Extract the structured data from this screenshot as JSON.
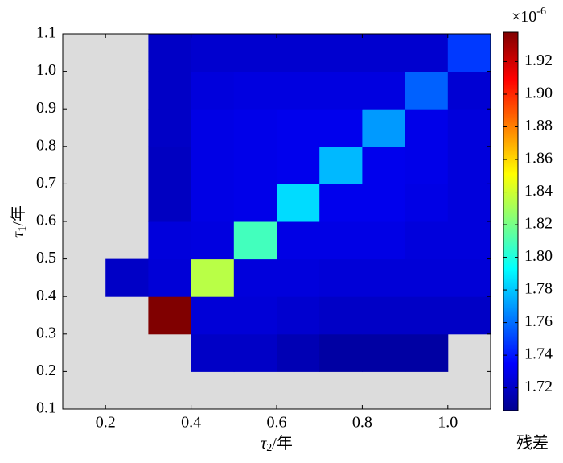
{
  "chart_data": {
    "type": "heatmap",
    "xlabel": {
      "symbol": "τ",
      "subscript": "2",
      "unit": "/年"
    },
    "ylabel": {
      "symbol": "τ",
      "subscript": "1",
      "unit": "/年"
    },
    "colorbar_label": "残差",
    "colorbar_multiplier": "×10",
    "colorbar_exponent": "-6",
    "colormap": "jet",
    "missing_color": "#dcdcdc",
    "xbins": [
      0.1,
      0.2,
      0.3,
      0.4,
      0.5,
      0.6,
      0.7,
      0.8,
      0.9,
      1.0,
      1.1
    ],
    "ybins": [
      0.1,
      0.2,
      0.3,
      0.4,
      0.5,
      0.6,
      0.7,
      0.8,
      0.9,
      1.0,
      1.1
    ],
    "z": [
      [
        null,
        null,
        null,
        null,
        null,
        null,
        null,
        null,
        null,
        null
      ],
      [
        null,
        null,
        null,
        1.722,
        1.722,
        1.718,
        1.714,
        1.714,
        1.714,
        null
      ],
      [
        null,
        null,
        1.938,
        1.726,
        1.726,
        1.724,
        1.722,
        1.722,
        1.722,
        1.722
      ],
      [
        null,
        1.722,
        1.726,
        1.835,
        1.727,
        1.727,
        1.726,
        1.726,
        1.726,
        1.726
      ],
      [
        null,
        null,
        1.727,
        1.728,
        1.808,
        1.729,
        1.729,
        1.729,
        1.727,
        1.727
      ],
      [
        null,
        null,
        1.721,
        1.729,
        1.73,
        1.785,
        1.731,
        1.731,
        1.729,
        1.727
      ],
      [
        null,
        null,
        1.721,
        1.729,
        1.73,
        1.731,
        1.777,
        1.731,
        1.73,
        1.727
      ],
      [
        null,
        null,
        1.722,
        1.729,
        1.73,
        1.731,
        1.731,
        1.77,
        1.73,
        1.727
      ],
      [
        null,
        null,
        1.722,
        1.727,
        1.728,
        1.728,
        1.728,
        1.728,
        1.757,
        1.725
      ],
      [
        null,
        null,
        1.722,
        1.724,
        1.724,
        1.724,
        1.724,
        1.724,
        1.724,
        1.748
      ]
    ],
    "xlim": [
      0.1,
      1.1
    ],
    "ylim": [
      0.1,
      1.1
    ],
    "xticks": [
      0.2,
      0.4,
      0.6,
      0.8,
      {
        "value": 1.0,
        "label": "1.0"
      }
    ],
    "yticks": [
      0.1,
      0.2,
      0.3,
      0.4,
      0.5,
      0.6,
      0.7,
      0.8,
      0.9,
      {
        "value": 1.0,
        "label": "1.0"
      },
      1.1
    ],
    "clim": [
      1.706,
      1.938
    ],
    "cticks": [
      1.72,
      1.74,
      1.76,
      1.78,
      {
        "value": 1.8,
        "label": "1.80"
      },
      1.82,
      1.84,
      1.86,
      1.88,
      {
        "value": 1.9,
        "label": "1.90"
      },
      1.92
    ]
  }
}
